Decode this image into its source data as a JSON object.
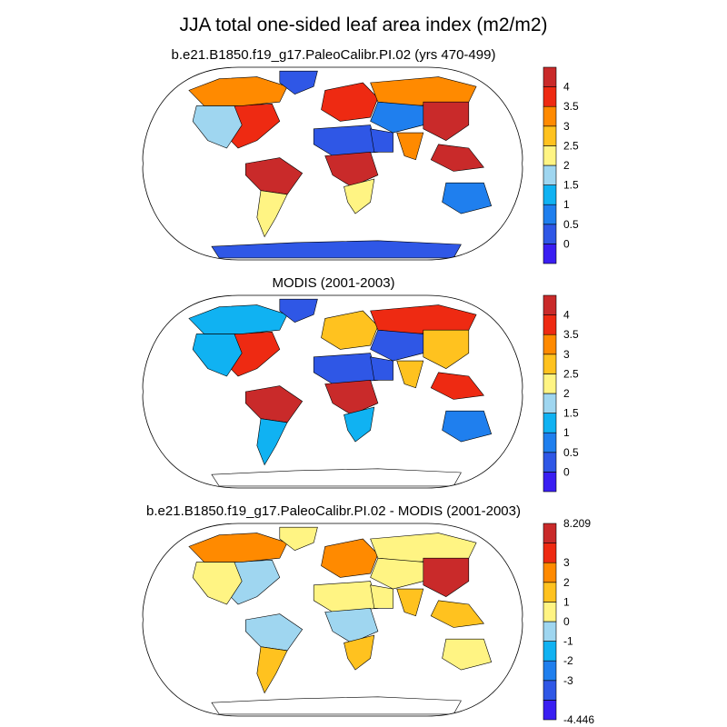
{
  "title": "JJA total one-sided leaf area index (m2/m2)",
  "colors": {
    "levels": [
      "#3a1ef2",
      "#2f57e6",
      "#1f7fee",
      "#10b2f2",
      "#9fd6f0",
      "#fff483",
      "#ffc21f",
      "#ff8a00",
      "#ee2a12",
      "#c92a2a"
    ],
    "ocean": "#ffffff",
    "coast": "#000000"
  },
  "chart_data": [
    {
      "type": "heatmap",
      "subtitle": "b.e21.B1850.f19_g17.PaleoCalibr.PI.02 (yrs 470-499)",
      "colorbar_labels": [
        "0",
        "0.5",
        "1",
        "1.5",
        "2",
        "2.5",
        "3",
        "3.5",
        "4"
      ],
      "colorbar_levels": 10,
      "regions": [
        {
          "id": "north-america-east",
          "level": 8
        },
        {
          "id": "north-america-west",
          "level": 4
        },
        {
          "id": "north-america-boreal",
          "level": 7
        },
        {
          "id": "greenland",
          "level": 1
        },
        {
          "id": "south-america-north",
          "level": 9
        },
        {
          "id": "south-america-south",
          "level": 5
        },
        {
          "id": "europe",
          "level": 8
        },
        {
          "id": "siberia",
          "level": 7
        },
        {
          "id": "central-asia",
          "level": 2
        },
        {
          "id": "east-asia",
          "level": 9
        },
        {
          "id": "southeast-asia",
          "level": 9
        },
        {
          "id": "africa-north",
          "level": 1
        },
        {
          "id": "africa-central",
          "level": 9
        },
        {
          "id": "africa-south",
          "level": 5
        },
        {
          "id": "arabia",
          "level": 1
        },
        {
          "id": "india",
          "level": 7
        },
        {
          "id": "australia",
          "level": 2
        },
        {
          "id": "antarctica",
          "level": 1
        }
      ]
    },
    {
      "type": "heatmap",
      "subtitle": "MODIS (2001-2003)",
      "colorbar_labels": [
        "0",
        "0.5",
        "1",
        "1.5",
        "2",
        "2.5",
        "3",
        "3.5",
        "4"
      ],
      "colorbar_levels": 10,
      "regions": [
        {
          "id": "north-america-east",
          "level": 8
        },
        {
          "id": "north-america-west",
          "level": 3
        },
        {
          "id": "north-america-boreal",
          "level": 3
        },
        {
          "id": "greenland",
          "level": 1
        },
        {
          "id": "south-america-north",
          "level": 9
        },
        {
          "id": "south-america-south",
          "level": 3
        },
        {
          "id": "europe",
          "level": 6
        },
        {
          "id": "siberia",
          "level": 8
        },
        {
          "id": "central-asia",
          "level": 1
        },
        {
          "id": "east-asia",
          "level": 6
        },
        {
          "id": "southeast-asia",
          "level": 8
        },
        {
          "id": "africa-north",
          "level": 1
        },
        {
          "id": "africa-central",
          "level": 9
        },
        {
          "id": "africa-south",
          "level": 3
        },
        {
          "id": "arabia",
          "level": 1
        },
        {
          "id": "india",
          "level": 6
        },
        {
          "id": "australia",
          "level": 2
        },
        {
          "id": "antarctica",
          "level": -1
        }
      ]
    },
    {
      "type": "heatmap",
      "subtitle": "b.e21.B1850.f19_g17.PaleoCalibr.PI.02 - MODIS (2001-2003)",
      "colorbar_labels": [
        "-4.446",
        "-3",
        "-2",
        "-1",
        "0",
        "1",
        "2",
        "3",
        "8.209"
      ],
      "colorbar_levels": 10,
      "colorbar_label_mode": "edges",
      "regions": [
        {
          "id": "north-america-east",
          "level": 4
        },
        {
          "id": "north-america-west",
          "level": 5
        },
        {
          "id": "north-america-boreal",
          "level": 7
        },
        {
          "id": "greenland",
          "level": 5
        },
        {
          "id": "south-america-north",
          "level": 4
        },
        {
          "id": "south-america-south",
          "level": 6
        },
        {
          "id": "europe",
          "level": 7
        },
        {
          "id": "siberia",
          "level": 5
        },
        {
          "id": "central-asia",
          "level": 5
        },
        {
          "id": "east-asia",
          "level": 9
        },
        {
          "id": "southeast-asia",
          "level": 6
        },
        {
          "id": "africa-north",
          "level": 5
        },
        {
          "id": "africa-central",
          "level": 4
        },
        {
          "id": "africa-south",
          "level": 6
        },
        {
          "id": "arabia",
          "level": 5
        },
        {
          "id": "india",
          "level": 6
        },
        {
          "id": "australia",
          "level": 5
        },
        {
          "id": "antarctica",
          "level": -1
        }
      ]
    }
  ]
}
